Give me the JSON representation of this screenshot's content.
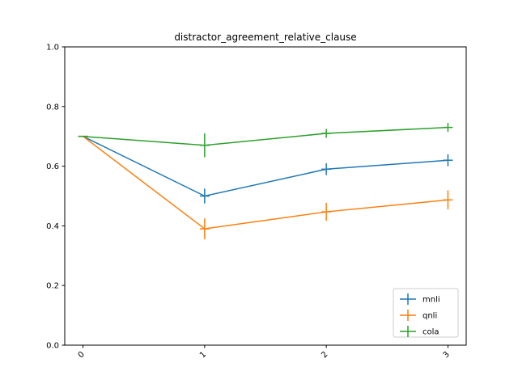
{
  "chart_data": {
    "type": "line",
    "title": "distractor_agreement_relative_clause",
    "xlabel": "",
    "ylabel": "",
    "x": [
      0,
      1,
      2,
      3
    ],
    "x_tick_labels": [
      "0",
      "1",
      "2",
      "3"
    ],
    "xlim": [
      -0.15,
      3.15
    ],
    "ylim": [
      0.0,
      1.0
    ],
    "y_ticks": [
      0.0,
      0.2,
      0.4,
      0.6,
      0.8,
      1.0
    ],
    "y_tick_labels": [
      "0.0",
      "0.2",
      "0.4",
      "0.6",
      "0.8",
      "1.0"
    ],
    "grid": false,
    "legend_position": "lower-right",
    "error_bars": true,
    "series": [
      {
        "name": "mnli",
        "color": "#1f77b4",
        "values": [
          0.7,
          0.5,
          0.59,
          0.62
        ],
        "errors": [
          0.0,
          0.025,
          0.02,
          0.02
        ]
      },
      {
        "name": "qnli",
        "color": "#ff7f0e",
        "values": [
          0.7,
          0.39,
          0.447,
          0.487
        ],
        "errors": [
          0.0,
          0.035,
          0.03,
          0.032
        ]
      },
      {
        "name": "cola",
        "color": "#2ca02c",
        "values": [
          0.7,
          0.67,
          0.71,
          0.73
        ],
        "errors": [
          0.0,
          0.04,
          0.015,
          0.015
        ]
      }
    ]
  }
}
